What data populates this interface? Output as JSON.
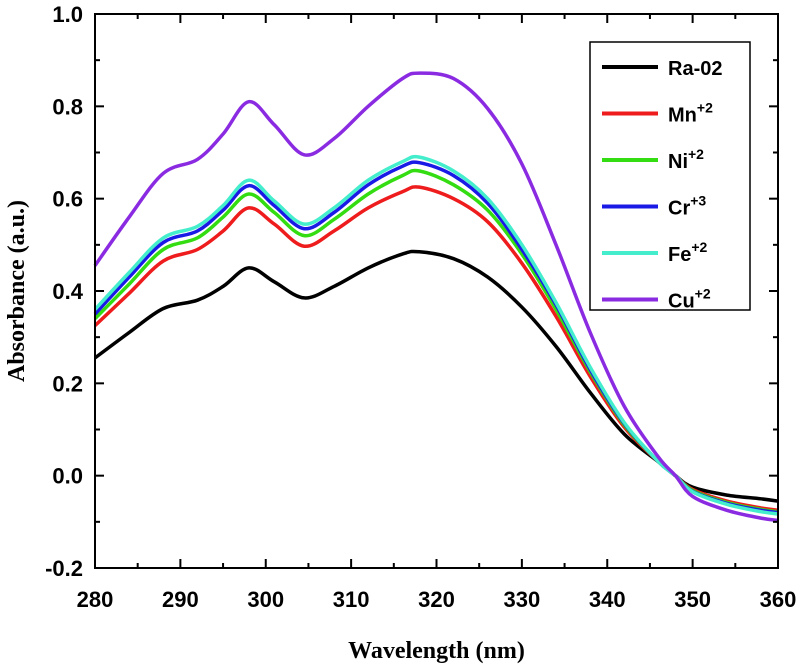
{
  "chart_data": {
    "type": "line",
    "title": "",
    "xlabel": "Wavelength (nm)",
    "ylabel": "Absorbance (a.u.)",
    "xlim": [
      280,
      360
    ],
    "ylim": [
      -0.2,
      1.0
    ],
    "xticks": [
      280,
      290,
      300,
      310,
      320,
      330,
      340,
      350,
      360
    ],
    "yticks": [
      -0.2,
      0.0,
      0.2,
      0.4,
      0.6,
      0.8,
      1.0
    ],
    "xtick_labels": [
      "280",
      "290",
      "300",
      "310",
      "320",
      "330",
      "340",
      "350",
      "360"
    ],
    "ytick_labels": [
      "-0.2",
      "0.0",
      "0.2",
      "0.4",
      "0.6",
      "0.8",
      "1.0"
    ],
    "grid": false,
    "legend_position": "top-right",
    "x": [
      280,
      284,
      288,
      292,
      295,
      298,
      301,
      304.5,
      308,
      312,
      316,
      318,
      322,
      326,
      330,
      334,
      338,
      342,
      346,
      348,
      350,
      354,
      358,
      360
    ],
    "series": [
      {
        "name": "Ra-02",
        "label_base": "Ra-02",
        "label_sup": "",
        "color": "#000000",
        "values": [
          0.255,
          0.31,
          0.362,
          0.38,
          0.41,
          0.45,
          0.42,
          0.385,
          0.41,
          0.45,
          0.48,
          0.485,
          0.47,
          0.43,
          0.365,
          0.28,
          0.18,
          0.09,
          0.03,
          0.0,
          -0.025,
          -0.042,
          -0.05,
          -0.055
        ]
      },
      {
        "name": "Mn+2",
        "label_base": "Mn",
        "label_sup": "+2",
        "color": "#ee1c1c",
        "values": [
          0.325,
          0.395,
          0.465,
          0.49,
          0.53,
          0.58,
          0.545,
          0.497,
          0.53,
          0.58,
          0.615,
          0.625,
          0.6,
          0.55,
          0.46,
          0.345,
          0.215,
          0.105,
          0.03,
          0.0,
          -0.03,
          -0.055,
          -0.07,
          -0.075
        ]
      },
      {
        "name": "Ni+2",
        "label_base": "Ni",
        "label_sup": "+2",
        "color": "#33dd11",
        "values": [
          0.34,
          0.415,
          0.49,
          0.515,
          0.56,
          0.61,
          0.57,
          0.52,
          0.555,
          0.61,
          0.65,
          0.66,
          0.63,
          0.575,
          0.48,
          0.36,
          0.225,
          0.11,
          0.03,
          0.0,
          -0.032,
          -0.058,
          -0.073,
          -0.078
        ]
      },
      {
        "name": "Cr+3",
        "label_base": "Cr",
        "label_sup": "+3",
        "color": "#1a1ae6",
        "values": [
          0.35,
          0.43,
          0.505,
          0.53,
          0.575,
          0.628,
          0.585,
          0.535,
          0.57,
          0.63,
          0.67,
          0.678,
          0.65,
          0.59,
          0.49,
          0.37,
          0.23,
          0.113,
          0.03,
          0.0,
          -0.034,
          -0.06,
          -0.075,
          -0.08
        ]
      },
      {
        "name": "Fe+2",
        "label_base": "Fe",
        "label_sup": "+2",
        "color": "#44eecc",
        "values": [
          0.36,
          0.44,
          0.515,
          0.54,
          0.585,
          0.64,
          0.595,
          0.545,
          0.58,
          0.64,
          0.68,
          0.69,
          0.66,
          0.6,
          0.5,
          0.375,
          0.235,
          0.115,
          0.03,
          0.0,
          -0.035,
          -0.062,
          -0.078,
          -0.083
        ]
      },
      {
        "name": "Cu+2",
        "label_base": "Cu",
        "label_sup": "+2",
        "color": "#8a2be2",
        "values": [
          0.455,
          0.56,
          0.655,
          0.685,
          0.74,
          0.81,
          0.76,
          0.695,
          0.73,
          0.8,
          0.86,
          0.872,
          0.86,
          0.795,
          0.675,
          0.5,
          0.31,
          0.15,
          0.04,
          0.0,
          -0.045,
          -0.075,
          -0.092,
          -0.097
        ]
      }
    ]
  }
}
